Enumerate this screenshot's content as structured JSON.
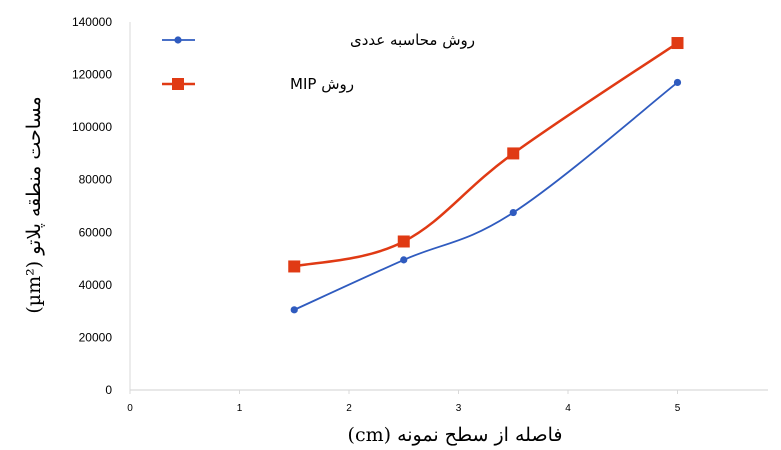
{
  "chart_data": {
    "type": "line",
    "title": "",
    "xlabel": "فاصله از سطح نمونه (cm)",
    "ylabel": "مساحت منطقه پلاتو (µm²)",
    "xlim": [
      0,
      6
    ],
    "ylim": [
      0,
      140000
    ],
    "xticks": [
      0,
      1,
      2,
      3,
      4,
      5
    ],
    "yticks": [
      0,
      20000,
      40000,
      60000,
      80000,
      100000,
      120000,
      140000
    ],
    "grid": false,
    "legend_position": "top-left",
    "series": [
      {
        "name": "روش محاسبه عددی",
        "color": "#2f5bbf",
        "marker": "circle",
        "x": [
          1.5,
          2.5,
          3.5,
          5
        ],
        "y": [
          30500,
          49500,
          67500,
          117000
        ]
      },
      {
        "name": "روش MIP",
        "color": "#e03a14",
        "marker": "square",
        "x": [
          1.5,
          2.5,
          3.5,
          5
        ],
        "y": [
          47000,
          56500,
          90000,
          132000
        ]
      }
    ]
  }
}
